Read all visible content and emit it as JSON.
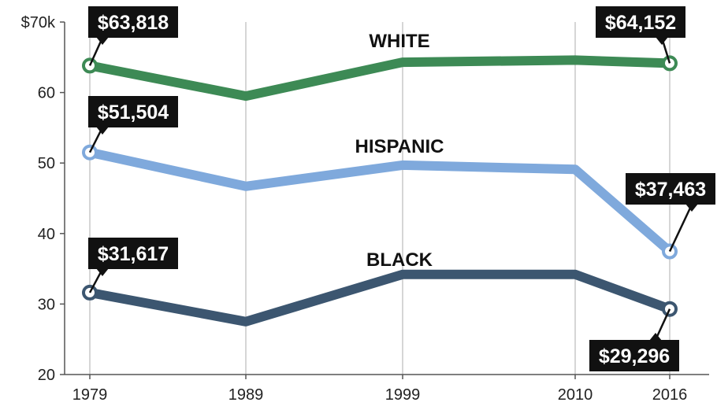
{
  "chart_data": {
    "type": "line",
    "title": "",
    "xlabel": "",
    "ylabel": "",
    "x": [
      1979,
      1989,
      1999,
      2010,
      2016
    ],
    "x_tick_labels": [
      "1979",
      "1989",
      "1999",
      "2010",
      "2016"
    ],
    "ylim": [
      20,
      70
    ],
    "y_ticks": [
      20,
      30,
      40,
      50,
      60,
      70
    ],
    "y_tick_labels": [
      "20",
      "30",
      "40",
      "50",
      "60",
      "$70k"
    ],
    "grid": "vertical",
    "legend": "inline labels",
    "series": [
      {
        "name": "WHITE",
        "color": "#3d8a55",
        "values": [
          63.818,
          59.5,
          64.3,
          64.6,
          64.152
        ],
        "callouts": [
          {
            "x": 1979,
            "text": "$63,818"
          },
          {
            "x": 2016,
            "text": "$64,152"
          }
        ]
      },
      {
        "name": "HISPANIC",
        "color": "#7fa9dc",
        "values": [
          51.504,
          46.7,
          49.7,
          49.1,
          37.463
        ],
        "callouts": [
          {
            "x": 1979,
            "text": "$51,504"
          },
          {
            "x": 2016,
            "text": "$37,463"
          }
        ]
      },
      {
        "name": "BLACK",
        "color": "#3c5670",
        "values": [
          31.617,
          27.5,
          34.2,
          34.2,
          29.296
        ],
        "callouts": [
          {
            "x": 1979,
            "text": "$31,617"
          },
          {
            "x": 2016,
            "text": "$29,296"
          }
        ]
      }
    ]
  }
}
